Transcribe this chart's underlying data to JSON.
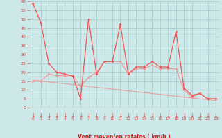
{
  "x": [
    0,
    1,
    2,
    3,
    4,
    5,
    6,
    7,
    8,
    9,
    10,
    11,
    12,
    13,
    14,
    15,
    16,
    17,
    18,
    19,
    20,
    21,
    22,
    23
  ],
  "rafales": [
    59,
    48,
    25,
    20,
    19,
    18,
    5,
    50,
    19,
    26,
    26,
    47,
    19,
    23,
    23,
    26,
    23,
    23,
    43,
    11,
    7,
    8,
    5,
    5
  ],
  "vent_moyen": [
    15,
    15,
    19,
    18,
    18,
    18,
    12,
    17,
    20,
    26,
    26,
    26,
    19,
    22,
    22,
    24,
    22,
    22,
    22,
    10,
    6,
    8,
    5,
    5
  ],
  "trend": [
    15.5,
    15.0,
    14.5,
    14.0,
    13.5,
    13.0,
    12.5,
    12.0,
    11.5,
    11.0,
    10.5,
    10.0,
    9.5,
    9.0,
    8.5,
    8.0,
    7.5,
    7.0,
    6.5,
    6.0,
    5.5,
    5.0,
    4.5,
    4.0
  ],
  "bg_color": "#cce8e8",
  "grid_color": "#aacece",
  "line_color_rafales": "#ee5555",
  "line_color_moyen": "#ee9999",
  "line_color_trend": "#ee9999",
  "xlabel": "Vent moyen/en rafales ( km/h )",
  "ylim": [
    0,
    60
  ],
  "xlim": [
    -0.5,
    23.5
  ],
  "yticks": [
    0,
    5,
    10,
    15,
    20,
    25,
    30,
    35,
    40,
    45,
    50,
    55,
    60
  ],
  "xtick_labels": [
    "0",
    "1",
    "2",
    "3",
    "4",
    "5",
    "6",
    "7",
    "8",
    "9",
    "10",
    "11",
    "12",
    "13",
    "14",
    "15",
    "16",
    "17",
    "18",
    "19",
    "20",
    "21",
    "22",
    "23"
  ],
  "tick_color": "#dd4444",
  "label_color": "#cc2222"
}
